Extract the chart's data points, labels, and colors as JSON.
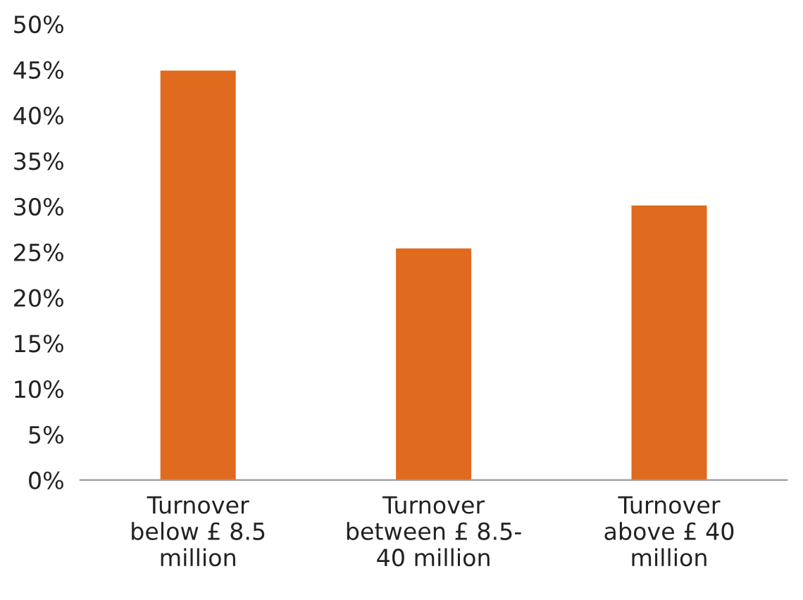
{
  "chart_data": {
    "type": "bar",
    "categories": [
      "Turnover\nbelow £ 8.5\nmillion",
      "Turnover\nbetween £ 8.5-\n40 million",
      "Turnover\nabove £ 40\nmillion"
    ],
    "values": [
      44.9,
      25.4,
      30.1
    ],
    "color": "#e06a1e",
    "ylim": [
      0,
      50
    ],
    "yticks": [
      {
        "value": 0,
        "label": "0%"
      },
      {
        "value": 5,
        "label": "5%"
      },
      {
        "value": 10,
        "label": "10%"
      },
      {
        "value": 15,
        "label": "15%"
      },
      {
        "value": 20,
        "label": "20%"
      },
      {
        "value": 25,
        "label": "25%"
      },
      {
        "value": 30,
        "label": "30%"
      },
      {
        "value": 35,
        "label": "35%"
      },
      {
        "value": 40,
        "label": "40%"
      },
      {
        "value": 45,
        "label": "45%"
      },
      {
        "value": 50,
        "label": "50%"
      }
    ],
    "grid": false
  }
}
